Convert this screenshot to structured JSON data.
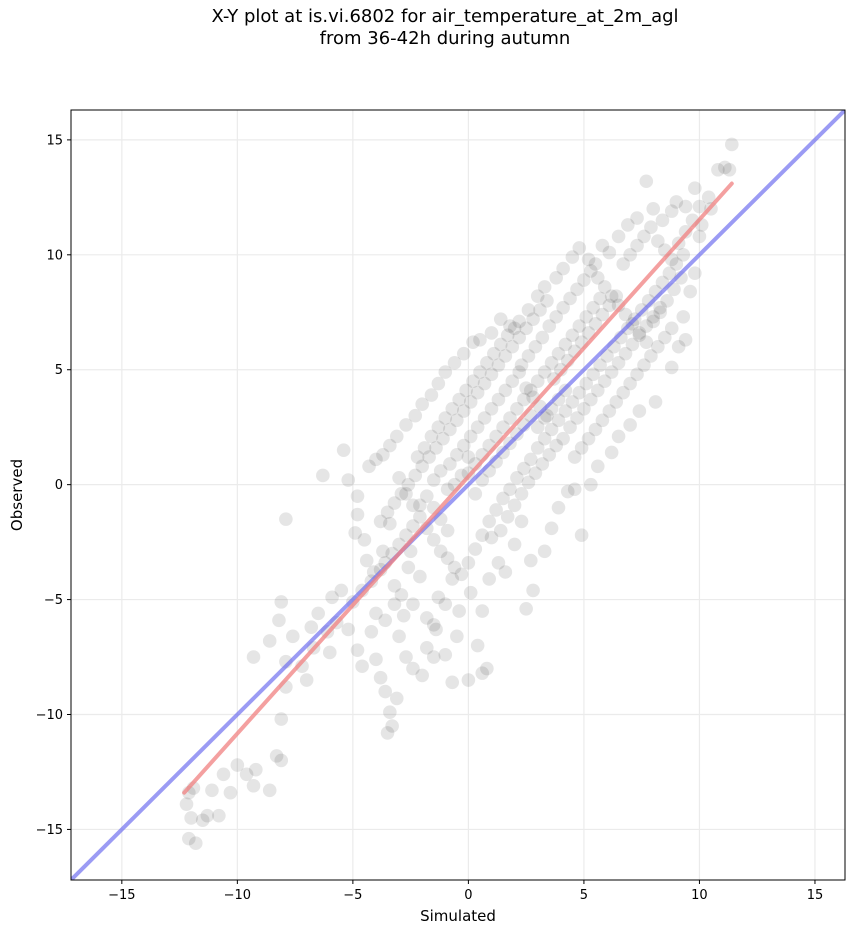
{
  "chart_data": {
    "type": "scatter",
    "title_line1": "X-Y plot at is.vi.6802 for air_temperature_at_2m_agl",
    "title_line2": "from 36-42h during autumn",
    "xlabel": "Simulated",
    "ylabel": "Observed",
    "xlim": [
      -17.2,
      16.3
    ],
    "ylim": [
      -17.2,
      16.3
    ],
    "xticks": [
      -15,
      -10,
      -5,
      0,
      5,
      10,
      15
    ],
    "yticks": [
      -15,
      -10,
      -5,
      0,
      5,
      10,
      15
    ],
    "xtick_labels": [
      "−15",
      "−10",
      "−5",
      "0",
      "5",
      "10",
      "15"
    ],
    "ytick_labels": [
      "−15",
      "−10",
      "−5",
      "0",
      "5",
      "10",
      "15"
    ],
    "grid": true,
    "point_color": "#000000",
    "point_opacity": 0.1,
    "regression_line": {
      "color": "#f08080",
      "x": [
        -12.3,
        11.4
      ],
      "y": [
        -13.4,
        13.1
      ]
    },
    "identity_line": {
      "color": "#6666ee",
      "x": [
        -17.2,
        16.3
      ],
      "y": [
        -17.2,
        16.3
      ]
    },
    "points": [
      [
        -12.1,
        -15.4
      ],
      [
        -12.2,
        -13.9
      ],
      [
        -12.0,
        -14.5
      ],
      [
        -11.8,
        -15.6
      ],
      [
        -11.5,
        -14.6
      ],
      [
        -12.1,
        -13.4
      ],
      [
        -11.9,
        -13.2
      ],
      [
        -11.3,
        -14.4
      ],
      [
        -11.1,
        -13.3
      ],
      [
        -10.6,
        -12.6
      ],
      [
        -10.3,
        -13.4
      ],
      [
        -10.8,
        -14.4
      ],
      [
        -10.0,
        -12.2
      ],
      [
        -9.6,
        -12.6
      ],
      [
        -9.3,
        -13.1
      ],
      [
        -9.2,
        -12.4
      ],
      [
        -8.6,
        -13.3
      ],
      [
        -8.3,
        -11.8
      ],
      [
        -8.1,
        -12.0
      ],
      [
        -8.1,
        -10.2
      ],
      [
        -7.9,
        -8.8
      ],
      [
        -7.9,
        -7.7
      ],
      [
        -8.2,
        -5.9
      ],
      [
        -8.1,
        -5.1
      ],
      [
        -7.9,
        -1.5
      ],
      [
        -8.6,
        -6.8
      ],
      [
        -9.3,
        -7.5
      ],
      [
        -7.6,
        -6.6
      ],
      [
        -7.2,
        -7.9
      ],
      [
        -7.0,
        -8.5
      ],
      [
        -6.8,
        -6.2
      ],
      [
        -6.7,
        -7.1
      ],
      [
        -6.5,
        -5.6
      ],
      [
        -6.1,
        -6.4
      ],
      [
        -6.0,
        -7.3
      ],
      [
        -5.9,
        -4.9
      ],
      [
        -5.7,
        -6.0
      ],
      [
        -5.5,
        -4.6
      ],
      [
        -5.2,
        -6.3
      ],
      [
        -4.8,
        -7.2
      ],
      [
        -4.6,
        -7.9
      ],
      [
        -4.2,
        -6.4
      ],
      [
        -4.0,
        -7.6
      ],
      [
        -3.8,
        -8.4
      ],
      [
        -3.6,
        -9.0
      ],
      [
        -3.5,
        -10.8
      ],
      [
        -3.3,
        -10.5
      ],
      [
        -3.4,
        -9.9
      ],
      [
        -3.1,
        -9.3
      ],
      [
        -3.0,
        -6.6
      ],
      [
        -2.7,
        -7.5
      ],
      [
        -2.4,
        -8.0
      ],
      [
        -2.0,
        -8.3
      ],
      [
        -1.8,
        -7.1
      ],
      [
        -1.5,
        -7.5
      ],
      [
        -1.4,
        -6.3
      ],
      [
        -1.0,
        -7.4
      ],
      [
        -0.7,
        -8.6
      ],
      [
        0.0,
        -8.5
      ],
      [
        0.6,
        -8.2
      ],
      [
        0.8,
        -8.0
      ],
      [
        0.4,
        -7.0
      ],
      [
        -0.5,
        -6.6
      ],
      [
        -6.3,
        0.4
      ],
      [
        -5.4,
        1.5
      ],
      [
        -5.2,
        0.2
      ],
      [
        -4.8,
        -0.5
      ],
      [
        -4.8,
        -1.3
      ],
      [
        -4.9,
        -2.1
      ],
      [
        -4.4,
        -3.3
      ],
      [
        -4.1,
        -3.8
      ],
      [
        -3.7,
        -2.9
      ],
      [
        -3.4,
        -1.7
      ],
      [
        -3.2,
        -4.4
      ],
      [
        -2.9,
        -4.8
      ],
      [
        -2.6,
        -3.6
      ],
      [
        -2.4,
        -5.2
      ],
      [
        -2.1,
        -4.0
      ],
      [
        -1.8,
        -5.8
      ],
      [
        -1.5,
        -6.1
      ],
      [
        -1.3,
        -4.9
      ],
      [
        -1.0,
        -5.2
      ],
      [
        -0.7,
        -4.1
      ],
      [
        -0.4,
        -5.5
      ],
      [
        0.1,
        -4.7
      ],
      [
        0.6,
        -5.5
      ],
      [
        0.9,
        -4.1
      ],
      [
        1.3,
        -3.4
      ],
      [
        1.6,
        -3.8
      ],
      [
        2.0,
        -2.6
      ],
      [
        2.3,
        -1.6
      ],
      [
        2.7,
        -3.3
      ],
      [
        2.5,
        -5.4
      ],
      [
        2.8,
        -4.6
      ],
      [
        3.3,
        -2.9
      ],
      [
        3.6,
        -1.9
      ],
      [
        3.9,
        -1.0
      ],
      [
        4.3,
        -0.3
      ],
      [
        4.6,
        -0.2
      ],
      [
        4.9,
        -2.2
      ],
      [
        5.3,
        0.0
      ],
      [
        5.6,
        0.8
      ],
      [
        6.2,
        1.4
      ],
      [
        6.5,
        2.1
      ],
      [
        7.0,
        2.6
      ],
      [
        7.4,
        3.2
      ],
      [
        8.1,
        3.6
      ],
      [
        8.8,
        5.1
      ],
      [
        9.1,
        6.0
      ],
      [
        9.4,
        6.3
      ],
      [
        9.3,
        7.3
      ],
      [
        9.6,
        8.4
      ],
      [
        9.8,
        9.2
      ],
      [
        10.0,
        10.8
      ],
      [
        10.1,
        11.3
      ],
      [
        10.5,
        12.0
      ],
      [
        10.8,
        13.7
      ],
      [
        11.1,
        13.8
      ],
      [
        11.4,
        14.8
      ],
      [
        11.3,
        13.7
      ],
      [
        10.4,
        12.5
      ],
      [
        9.8,
        12.9
      ],
      [
        9.4,
        12.1
      ],
      [
        9.0,
        12.3
      ],
      [
        8.8,
        11.9
      ],
      [
        8.4,
        11.5
      ],
      [
        8.0,
        12.0
      ],
      [
        7.7,
        13.2
      ],
      [
        7.3,
        11.6
      ],
      [
        6.9,
        11.3
      ],
      [
        6.5,
        10.8
      ],
      [
        6.1,
        10.1
      ],
      [
        5.8,
        10.4
      ],
      [
        5.5,
        9.6
      ],
      [
        5.2,
        9.8
      ],
      [
        4.8,
        10.3
      ],
      [
        4.5,
        9.9
      ],
      [
        4.1,
        9.4
      ],
      [
        3.8,
        9.0
      ],
      [
        3.3,
        8.6
      ],
      [
        3.0,
        8.2
      ],
      [
        2.6,
        7.6
      ],
      [
        2.2,
        7.1
      ],
      [
        1.8,
        6.9
      ],
      [
        1.4,
        7.2
      ],
      [
        1.0,
        6.6
      ],
      [
        0.5,
        6.3
      ],
      [
        0.2,
        6.2
      ],
      [
        -0.2,
        5.7
      ],
      [
        -0.6,
        5.3
      ],
      [
        -1.0,
        4.9
      ],
      [
        -1.3,
        4.4
      ],
      [
        -1.6,
        3.9
      ],
      [
        -2.0,
        3.5
      ],
      [
        -2.3,
        3.0
      ],
      [
        -2.7,
        2.6
      ],
      [
        -3.1,
        2.1
      ],
      [
        -3.4,
        1.7
      ],
      [
        -3.7,
        1.3
      ],
      [
        -4.0,
        1.1
      ],
      [
        -4.3,
        0.8
      ],
      [
        -3.0,
        0.3
      ],
      [
        -2.7,
        -0.4
      ],
      [
        -2.4,
        -0.9
      ],
      [
        -2.1,
        -1.4
      ],
      [
        -1.8,
        -1.9
      ],
      [
        -1.5,
        -2.4
      ],
      [
        -1.2,
        -2.9
      ],
      [
        -0.9,
        -3.2
      ],
      [
        -0.6,
        -3.6
      ],
      [
        -0.3,
        -3.9
      ],
      [
        0.0,
        -3.4
      ],
      [
        0.3,
        -2.8
      ],
      [
        0.6,
        -2.2
      ],
      [
        0.9,
        -1.6
      ],
      [
        1.2,
        -1.1
      ],
      [
        1.5,
        -0.6
      ],
      [
        1.8,
        -0.2
      ],
      [
        2.1,
        0.3
      ],
      [
        2.4,
        0.7
      ],
      [
        2.7,
        1.1
      ],
      [
        3.0,
        1.6
      ],
      [
        3.3,
        2.0
      ],
      [
        3.6,
        2.4
      ],
      [
        3.9,
        2.8
      ],
      [
        4.2,
        3.2
      ],
      [
        4.5,
        3.6
      ],
      [
        4.8,
        4.0
      ],
      [
        5.1,
        4.4
      ],
      [
        5.4,
        4.8
      ],
      [
        5.7,
        5.2
      ],
      [
        6.0,
        5.6
      ],
      [
        6.3,
        6.0
      ],
      [
        6.6,
        6.4
      ],
      [
        6.9,
        6.8
      ],
      [
        7.2,
        7.2
      ],
      [
        7.5,
        7.6
      ],
      [
        7.8,
        8.0
      ],
      [
        8.1,
        8.4
      ],
      [
        8.4,
        8.8
      ],
      [
        8.7,
        9.2
      ],
      [
        9.0,
        9.6
      ],
      [
        9.3,
        10.0
      ],
      [
        -2.2,
        1.2
      ],
      [
        -1.9,
        1.6
      ],
      [
        -1.6,
        2.1
      ],
      [
        -1.3,
        2.5
      ],
      [
        -1.0,
        2.9
      ],
      [
        -0.7,
        3.3
      ],
      [
        -0.4,
        3.7
      ],
      [
        -0.1,
        4.1
      ],
      [
        0.2,
        4.5
      ],
      [
        0.5,
        4.9
      ],
      [
        0.8,
        5.3
      ],
      [
        1.1,
        5.7
      ],
      [
        1.4,
        6.1
      ],
      [
        1.7,
        6.5
      ],
      [
        2.0,
        6.8
      ],
      [
        2.3,
        5.2
      ],
      [
        2.6,
        5.6
      ],
      [
        2.9,
        6.0
      ],
      [
        3.2,
        6.4
      ],
      [
        3.5,
        6.9
      ],
      [
        3.8,
        7.3
      ],
      [
        4.1,
        7.7
      ],
      [
        4.4,
        8.1
      ],
      [
        4.7,
        8.5
      ],
      [
        5.0,
        8.9
      ],
      [
        5.3,
        9.3
      ],
      [
        5.6,
        9.0
      ],
      [
        5.9,
        8.6
      ],
      [
        6.2,
        8.2
      ],
      [
        6.5,
        7.8
      ],
      [
        6.8,
        7.4
      ],
      [
        7.1,
        7.0
      ],
      [
        7.4,
        6.6
      ],
      [
        7.7,
        6.2
      ],
      [
        8.0,
        7.1
      ],
      [
        8.3,
        7.5
      ],
      [
        8.6,
        8.0
      ],
      [
        8.9,
        8.5
      ],
      [
        9.2,
        9.0
      ],
      [
        -0.8,
        0.9
      ],
      [
        -0.5,
        1.3
      ],
      [
        -0.2,
        1.7
      ],
      [
        0.1,
        2.1
      ],
      [
        0.4,
        2.5
      ],
      [
        0.7,
        2.9
      ],
      [
        1.0,
        3.3
      ],
      [
        1.3,
        3.7
      ],
      [
        1.6,
        4.1
      ],
      [
        1.9,
        4.5
      ],
      [
        2.2,
        4.9
      ],
      [
        2.5,
        4.2
      ],
      [
        2.8,
        3.8
      ],
      [
        3.1,
        3.4
      ],
      [
        3.4,
        3.0
      ],
      [
        3.7,
        4.6
      ],
      [
        4.0,
        5.0
      ],
      [
        4.3,
        5.4
      ],
      [
        4.6,
        5.8
      ],
      [
        4.9,
        6.2
      ],
      [
        5.2,
        6.6
      ],
      [
        5.5,
        7.0
      ],
      [
        5.8,
        7.4
      ],
      [
        6.1,
        7.8
      ],
      [
        6.4,
        8.2
      ],
      [
        0.0,
        0.5
      ],
      [
        0.3,
        0.9
      ],
      [
        0.6,
        1.3
      ],
      [
        0.9,
        1.7
      ],
      [
        1.2,
        2.1
      ],
      [
        1.5,
        2.5
      ],
      [
        1.8,
        2.9
      ],
      [
        2.1,
        3.3
      ],
      [
        2.4,
        3.7
      ],
      [
        2.7,
        4.1
      ],
      [
        3.0,
        4.5
      ],
      [
        3.3,
        4.9
      ],
      [
        3.6,
        5.3
      ],
      [
        3.9,
        5.7
      ],
      [
        4.2,
        6.1
      ],
      [
        4.5,
        6.5
      ],
      [
        4.8,
        6.9
      ],
      [
        5.1,
        7.3
      ],
      [
        5.4,
        7.7
      ],
      [
        5.7,
        8.1
      ],
      [
        -1.5,
        0.2
      ],
      [
        -1.2,
        0.6
      ],
      [
        -0.9,
        -0.2
      ],
      [
        -0.6,
        0.0
      ],
      [
        -0.3,
        0.4
      ],
      [
        0.0,
        1.2
      ],
      [
        0.3,
        -0.4
      ],
      [
        0.6,
        0.2
      ],
      [
        0.9,
        0.6
      ],
      [
        1.2,
        1.0
      ],
      [
        1.5,
        1.4
      ],
      [
        1.8,
        1.8
      ],
      [
        2.1,
        2.2
      ],
      [
        2.4,
        2.6
      ],
      [
        2.7,
        3.0
      ],
      [
        3.0,
        2.5
      ],
      [
        3.3,
        2.9
      ],
      [
        3.6,
        3.3
      ],
      [
        3.9,
        3.7
      ],
      [
        4.2,
        4.1
      ],
      [
        -3.6,
        -3.4
      ],
      [
        -3.3,
        -3.0
      ],
      [
        -3.0,
        -2.6
      ],
      [
        -2.7,
        -2.2
      ],
      [
        -2.4,
        -1.8
      ],
      [
        -2.1,
        -0.9
      ],
      [
        -1.8,
        -0.5
      ],
      [
        -1.5,
        -1.0
      ],
      [
        -1.2,
        -1.5
      ],
      [
        -0.9,
        -2.0
      ],
      [
        -5.0,
        -5.1
      ],
      [
        -4.6,
        -4.6
      ],
      [
        -4.2,
        -4.2
      ],
      [
        -3.8,
        -3.7
      ],
      [
        -4.0,
        -5.6
      ],
      [
        -3.6,
        -5.9
      ],
      [
        -3.2,
        -5.2
      ],
      [
        -2.8,
        -5.7
      ],
      [
        -4.5,
        -2.4
      ],
      [
        -2.5,
        -2.9
      ],
      [
        1.0,
        -2.3
      ],
      [
        1.4,
        -2.0
      ],
      [
        1.7,
        -1.4
      ],
      [
        2.0,
        -0.9
      ],
      [
        2.3,
        -0.4
      ],
      [
        2.6,
        0.1
      ],
      [
        2.9,
        0.5
      ],
      [
        3.2,
        0.9
      ],
      [
        3.5,
        1.3
      ],
      [
        3.8,
        1.7
      ],
      [
        4.1,
        2.0
      ],
      [
        4.4,
        2.5
      ],
      [
        4.7,
        2.9
      ],
      [
        5.0,
        3.3
      ],
      [
        5.3,
        3.7
      ],
      [
        5.6,
        4.1
      ],
      [
        5.9,
        4.5
      ],
      [
        6.2,
        4.9
      ],
      [
        6.5,
        5.3
      ],
      [
        6.8,
        5.7
      ],
      [
        7.1,
        6.1
      ],
      [
        7.4,
        6.5
      ],
      [
        7.7,
        6.9
      ],
      [
        8.0,
        7.3
      ],
      [
        8.3,
        7.7
      ],
      [
        6.7,
        9.6
      ],
      [
        7.0,
        10.0
      ],
      [
        7.3,
        10.4
      ],
      [
        7.6,
        10.8
      ],
      [
        7.9,
        11.2
      ],
      [
        8.2,
        10.6
      ],
      [
        8.5,
        10.2
      ],
      [
        8.8,
        9.8
      ],
      [
        9.1,
        10.5
      ],
      [
        9.4,
        11.0
      ],
      [
        9.7,
        11.5
      ],
      [
        10.0,
        12.1
      ],
      [
        3.4,
        8.0
      ],
      [
        3.1,
        7.6
      ],
      [
        2.8,
        7.2
      ],
      [
        2.5,
        6.8
      ],
      [
        2.2,
        6.4
      ],
      [
        1.9,
        6.0
      ],
      [
        1.6,
        5.6
      ],
      [
        1.3,
        5.2
      ],
      [
        1.0,
        4.8
      ],
      [
        0.7,
        4.4
      ],
      [
        0.4,
        4.0
      ],
      [
        0.1,
        3.6
      ],
      [
        -0.2,
        3.2
      ],
      [
        -0.5,
        2.8
      ],
      [
        -0.8,
        2.4
      ],
      [
        -1.1,
        2.0
      ],
      [
        -1.4,
        1.6
      ],
      [
        -1.7,
        1.2
      ],
      [
        -2.0,
        0.8
      ],
      [
        -2.3,
        0.4
      ],
      [
        -2.6,
        0.0
      ],
      [
        -2.9,
        -0.4
      ],
      [
        -3.2,
        -0.8
      ],
      [
        -3.5,
        -1.2
      ],
      [
        -3.8,
        -1.6
      ],
      [
        4.6,
        1.2
      ],
      [
        4.9,
        1.6
      ],
      [
        5.2,
        2.0
      ],
      [
        5.5,
        2.4
      ],
      [
        5.8,
        2.8
      ],
      [
        6.1,
        3.2
      ],
      [
        6.4,
        3.6
      ],
      [
        6.7,
        4.0
      ],
      [
        7.0,
        4.4
      ],
      [
        7.3,
        4.8
      ],
      [
        7.6,
        5.2
      ],
      [
        7.9,
        5.6
      ],
      [
        8.2,
        6.0
      ],
      [
        8.5,
        6.4
      ],
      [
        8.8,
        6.8
      ]
    ]
  }
}
